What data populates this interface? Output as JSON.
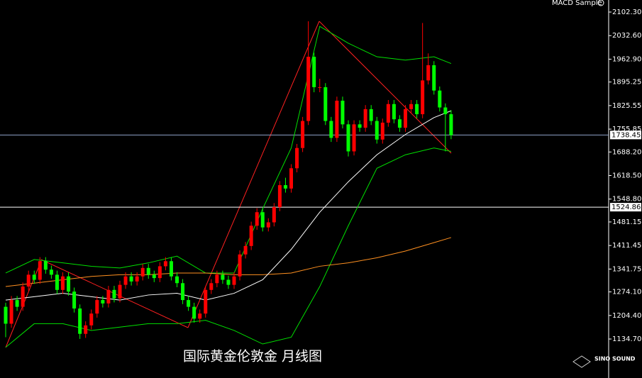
{
  "chart_data": {
    "type": "candlestick",
    "title": "国际黄金伦敦金  月线图",
    "indicator_label": "MACD Sample",
    "watermark": "SINO SOUND",
    "up_color": "#ff0000",
    "down_color": "#00ff00",
    "open": [
      1230,
      1180,
      1250,
      1230,
      1290,
      1325,
      1310,
      1365,
      1340,
      1325,
      1280,
      1320,
      1275,
      1225,
      1150,
      1175,
      1210,
      1250,
      1240,
      1280,
      1255,
      1295,
      1320,
      1305,
      1320,
      1345,
      1325,
      1315,
      1350,
      1365,
      1320,
      1300,
      1250,
      1230,
      1195,
      1210,
      1280,
      1300,
      1325,
      1310,
      1295,
      1320,
      1385,
      1410,
      1470,
      1510,
      1465,
      1480,
      1525,
      1590,
      1580,
      1640,
      1700,
      1780,
      1970,
      1880,
      1880,
      1780,
      1730,
      1840,
      1770,
      1690,
      1770,
      1760,
      1815,
      1780,
      1725,
      1775,
      1830,
      1785,
      1760,
      1815,
      1830,
      1800,
      1900,
      1945,
      1870,
      1820,
      1800
    ],
    "high": [
      1242,
      1262,
      1262,
      1302,
      1337,
      1337,
      1377,
      1377,
      1352,
      1337,
      1332,
      1332,
      1287,
      1237,
      1187,
      1222,
      1262,
      1262,
      1292,
      1292,
      1307,
      1332,
      1332,
      1332,
      1357,
      1357,
      1337,
      1362,
      1377,
      1377,
      1332,
      1312,
      1262,
      1242,
      1222,
      1292,
      1312,
      1337,
      1337,
      1322,
      1332,
      1397,
      1422,
      1482,
      1522,
      1522,
      1492,
      1537,
      1602,
      1612,
      1652,
      1712,
      1792,
      2075,
      1982,
      1905,
      1892,
      1792,
      1852,
      1852,
      1782,
      1782,
      1782,
      1827,
      1827,
      1792,
      1787,
      1842,
      1842,
      1797,
      1827,
      1842,
      1842,
      2070,
      1980,
      1957,
      1882,
      1832,
      1812
    ],
    "low": [
      1140,
      1168,
      1218,
      1218,
      1278,
      1298,
      1298,
      1328,
      1313,
      1268,
      1268,
      1263,
      1213,
      1135,
      1138,
      1163,
      1198,
      1228,
      1228,
      1243,
      1243,
      1283,
      1293,
      1293,
      1308,
      1313,
      1303,
      1303,
      1338,
      1308,
      1288,
      1238,
      1218,
      1183,
      1183,
      1198,
      1268,
      1288,
      1298,
      1283,
      1283,
      1308,
      1373,
      1398,
      1458,
      1453,
      1453,
      1468,
      1513,
      1568,
      1568,
      1628,
      1688,
      1768,
      1865,
      1865,
      1768,
      1718,
      1718,
      1758,
      1675,
      1678,
      1748,
      1748,
      1768,
      1713,
      1713,
      1763,
      1773,
      1748,
      1748,
      1803,
      1788,
      1788,
      1888,
      1858,
      1808,
      1690,
      1726
    ],
    "close": [
      1180,
      1250,
      1230,
      1290,
      1325,
      1310,
      1365,
      1340,
      1325,
      1280,
      1320,
      1275,
      1225,
      1150,
      1175,
      1210,
      1250,
      1240,
      1280,
      1255,
      1295,
      1320,
      1305,
      1320,
      1345,
      1325,
      1315,
      1350,
      1365,
      1320,
      1300,
      1250,
      1230,
      1195,
      1210,
      1280,
      1300,
      1325,
      1310,
      1295,
      1320,
      1385,
      1410,
      1470,
      1510,
      1465,
      1480,
      1525,
      1590,
      1580,
      1640,
      1700,
      1780,
      1970,
      1880,
      1880,
      1780,
      1730,
      1840,
      1770,
      1690,
      1770,
      1760,
      1815,
      1780,
      1725,
      1775,
      1830,
      1785,
      1760,
      1815,
      1830,
      1800,
      1900,
      1945,
      1870,
      1820,
      1800,
      1738
    ],
    "lines": [
      {
        "color": "#00e000",
        "x": [
          0,
          5,
          10,
          15,
          20,
          25,
          30,
          35,
          40,
          45,
          50,
          55,
          60,
          65,
          70,
          75,
          78
        ],
        "values": [
          1330,
          1370,
          1360,
          1350,
          1345,
          1360,
          1380,
          1330,
          1330,
          1520,
          1700,
          2060,
          2010,
          1970,
          1960,
          1970,
          1950
        ]
      },
      {
        "color": "#00e000",
        "x": [
          0,
          5,
          10,
          15,
          20,
          25,
          30,
          35,
          40,
          45,
          50,
          55,
          60,
          65,
          70,
          75,
          78
        ],
        "values": [
          1110,
          1180,
          1180,
          1160,
          1170,
          1180,
          1180,
          1190,
          1160,
          1120,
          1140,
          1290,
          1470,
          1640,
          1680,
          1700,
          1690
        ]
      },
      {
        "color": "#ff9020",
        "x": [
          0,
          5,
          10,
          15,
          20,
          25,
          30,
          35,
          40,
          45,
          50,
          55,
          60,
          65,
          70,
          75,
          78
        ],
        "values": [
          1290,
          1300,
          1310,
          1320,
          1325,
          1325,
          1330,
          1330,
          1325,
          1325,
          1330,
          1350,
          1360,
          1375,
          1395,
          1420,
          1435
        ]
      },
      {
        "color": "#ffffff",
        "x": [
          0,
          5,
          10,
          15,
          20,
          25,
          30,
          35,
          40,
          45,
          50,
          55,
          60,
          65,
          70,
          75,
          78
        ],
        "values": [
          1250,
          1260,
          1270,
          1260,
          1250,
          1265,
          1270,
          1250,
          1270,
          1310,
          1400,
          1510,
          1600,
          1680,
          1740,
          1790,
          1810
        ]
      }
    ],
    "hlines": [
      {
        "value": 1738.45,
        "color": "#8fa3c8"
      },
      {
        "value": 1524.86,
        "color": "#ffffff"
      }
    ],
    "ylim": [
      1019.3,
      2138.0
    ],
    "yticks": [
      {
        "value": 2102.3,
        "label": "2102.30"
      },
      {
        "value": 2032.6,
        "label": "2032.60"
      },
      {
        "value": 1962.9,
        "label": "1962.90"
      },
      {
        "value": 1895.25,
        "label": "1895.25"
      },
      {
        "value": 1825.55,
        "label": "1825.55"
      },
      {
        "value": 1755.85,
        "label": "1755.85"
      },
      {
        "value": 1688.2,
        "label": "1688.20"
      },
      {
        "value": 1618.5,
        "label": "1618.50"
      },
      {
        "value": 1548.8,
        "label": "1548.80"
      },
      {
        "value": 1481.15,
        "label": "1481.15"
      },
      {
        "value": 1411.45,
        "label": "1411.45"
      },
      {
        "value": 1341.75,
        "label": "1341.75"
      },
      {
        "value": 1274.1,
        "label": "1274.10"
      },
      {
        "value": 1204.4,
        "label": "1204.40"
      },
      {
        "value": 1134.7,
        "label": "1134.70"
      }
    ]
  }
}
